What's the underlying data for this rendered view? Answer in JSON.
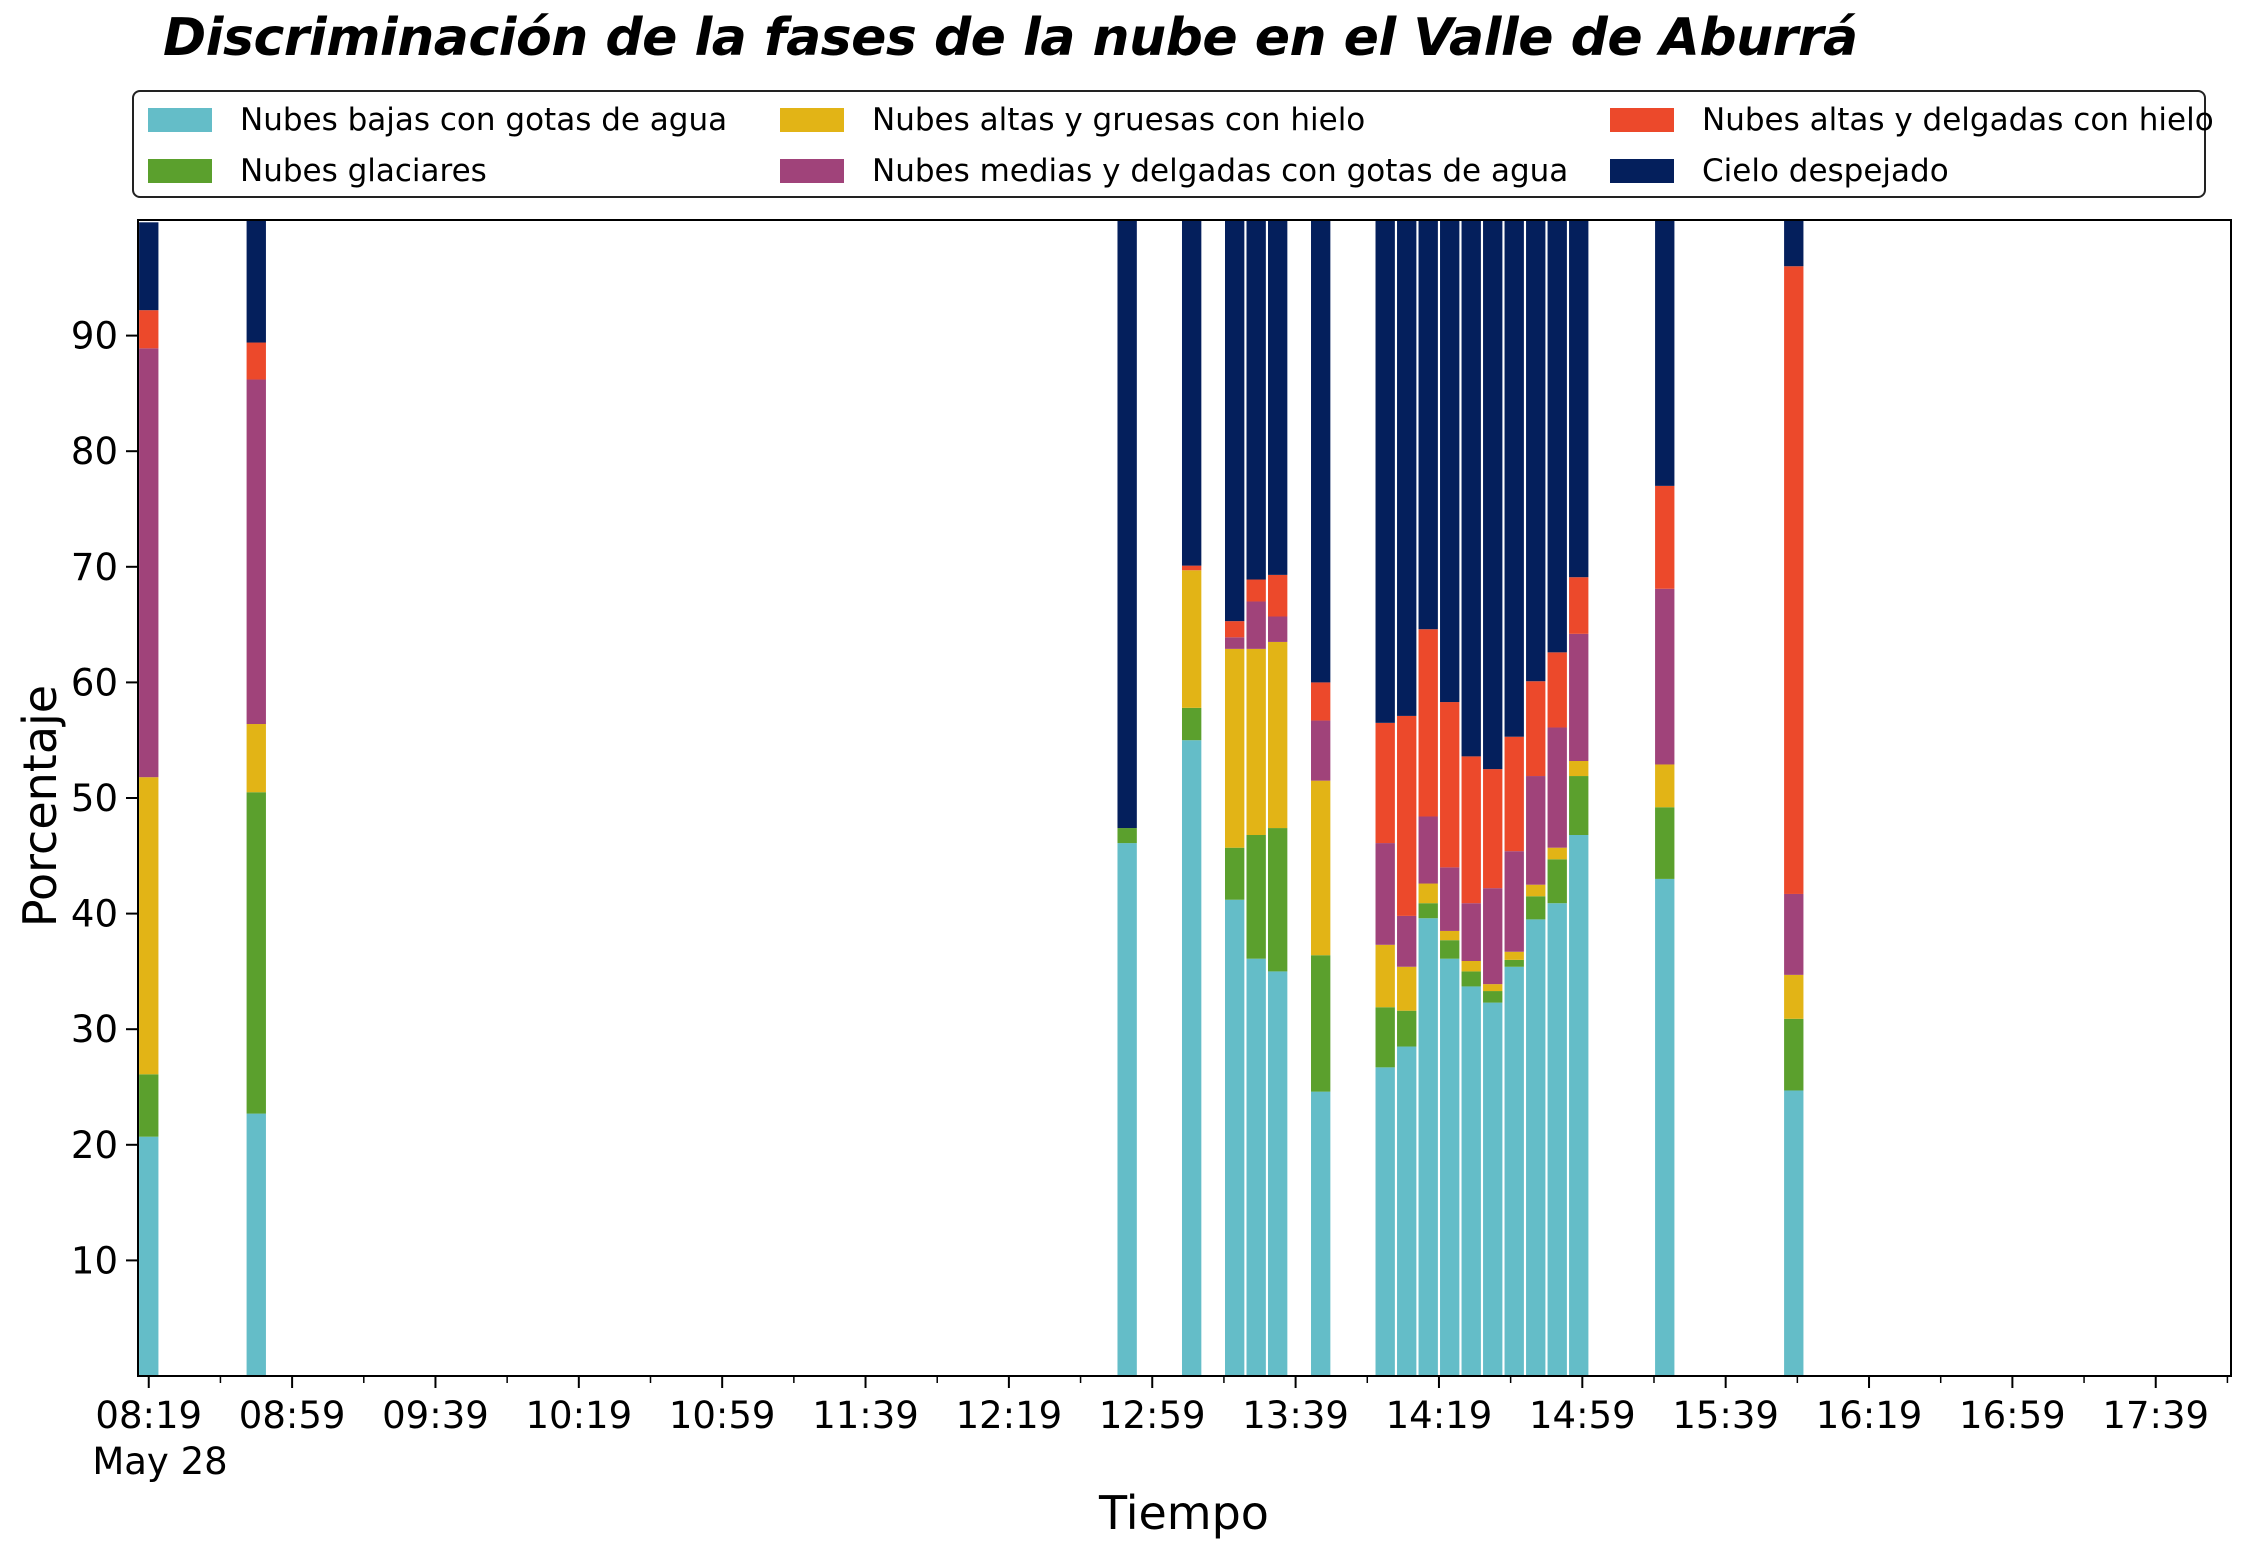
{
  "chart_data": {
    "type": "bar",
    "stacked": true,
    "title": "Discriminación de la fases de la nube en el Valle de Aburrá",
    "xlabel": "Tiempo",
    "ylabel": "Porcentaje",
    "ylim": [
      0,
      100
    ],
    "yticks": [
      10,
      20,
      30,
      40,
      50,
      60,
      70,
      80,
      90
    ],
    "x_date_label": "May 28",
    "x_range": [
      "08:16",
      "18:00"
    ],
    "x_tick_labels": [
      "08:19",
      "08:59",
      "09:39",
      "10:19",
      "10:59",
      "11:39",
      "12:19",
      "12:59",
      "13:39",
      "14:19",
      "14:59",
      "15:39",
      "16:19",
      "16:59",
      "17:39"
    ],
    "legend_position": "top (above plot, 3 columns)",
    "grid": false,
    "x": [
      "08:19",
      "08:49",
      "12:52",
      "13:10",
      "13:22",
      "13:28",
      "13:34",
      "13:46",
      "14:04",
      "14:10",
      "14:16",
      "14:22",
      "14:28",
      "14:34",
      "14:40",
      "14:46",
      "14:52",
      "14:58",
      "15:04",
      "15:22",
      "15:58"
    ],
    "series": [
      {
        "name": "Nubes bajas con gotas de agua",
        "color": "#64bdc8",
        "values": [
          20.7,
          22.7,
          46.1,
          55.0,
          41.2,
          36.1,
          35.0,
          24.6,
          26.7,
          28.5,
          39.6,
          36.1,
          33.7,
          32.3,
          35.4,
          39.5,
          40.9,
          46.8,
          0,
          43.0,
          24.7
        ]
      },
      {
        "name": "Nubes glaciares",
        "color": "#5ba02d",
        "values": [
          5.4,
          27.8,
          1.3,
          2.8,
          4.5,
          10.7,
          12.4,
          11.8,
          5.2,
          3.1,
          1.3,
          1.6,
          1.3,
          1.0,
          0.6,
          2.0,
          3.8,
          5.1,
          0,
          6.2,
          6.2
        ]
      },
      {
        "name": "Nubes altas y gruesas con hielo",
        "color": "#e2b416",
        "values": [
          25.7,
          5.9,
          0,
          11.9,
          17.2,
          16.1,
          16.1,
          15.1,
          5.4,
          3.8,
          1.7,
          0.8,
          0.9,
          0.6,
          0.7,
          1.0,
          1.0,
          1.3,
          0,
          3.7,
          3.8
        ]
      },
      {
        "name": "Nubes medias y delgadas con gotas de agua",
        "color": "#a0437a",
        "values": [
          37.1,
          29.8,
          0,
          0,
          1.0,
          4.1,
          2.2,
          5.2,
          8.8,
          4.4,
          5.8,
          5.5,
          5.0,
          8.3,
          8.7,
          9.4,
          10.4,
          11.0,
          0,
          15.2,
          7.0
        ]
      },
      {
        "name": "Nubes altas y delgadas con hielo",
        "color": "#ec492b",
        "values": [
          3.3,
          3.2,
          0,
          0.4,
          1.4,
          1.9,
          3.6,
          3.3,
          10.4,
          17.3,
          16.2,
          14.3,
          12.7,
          10.3,
          9.9,
          8.2,
          6.5,
          4.9,
          0,
          8.9,
          54.3
        ]
      },
      {
        "name": "Cielo despejado",
        "color": "#041f5c",
        "values": [
          7.6,
          10.6,
          52.6,
          29.9,
          34.7,
          31.1,
          30.7,
          40.0,
          43.5,
          42.9,
          35.4,
          41.7,
          46.4,
          47.5,
          44.7,
          39.9,
          37.4,
          30.9,
          0,
          23.0,
          4.0
        ]
      }
    ]
  }
}
